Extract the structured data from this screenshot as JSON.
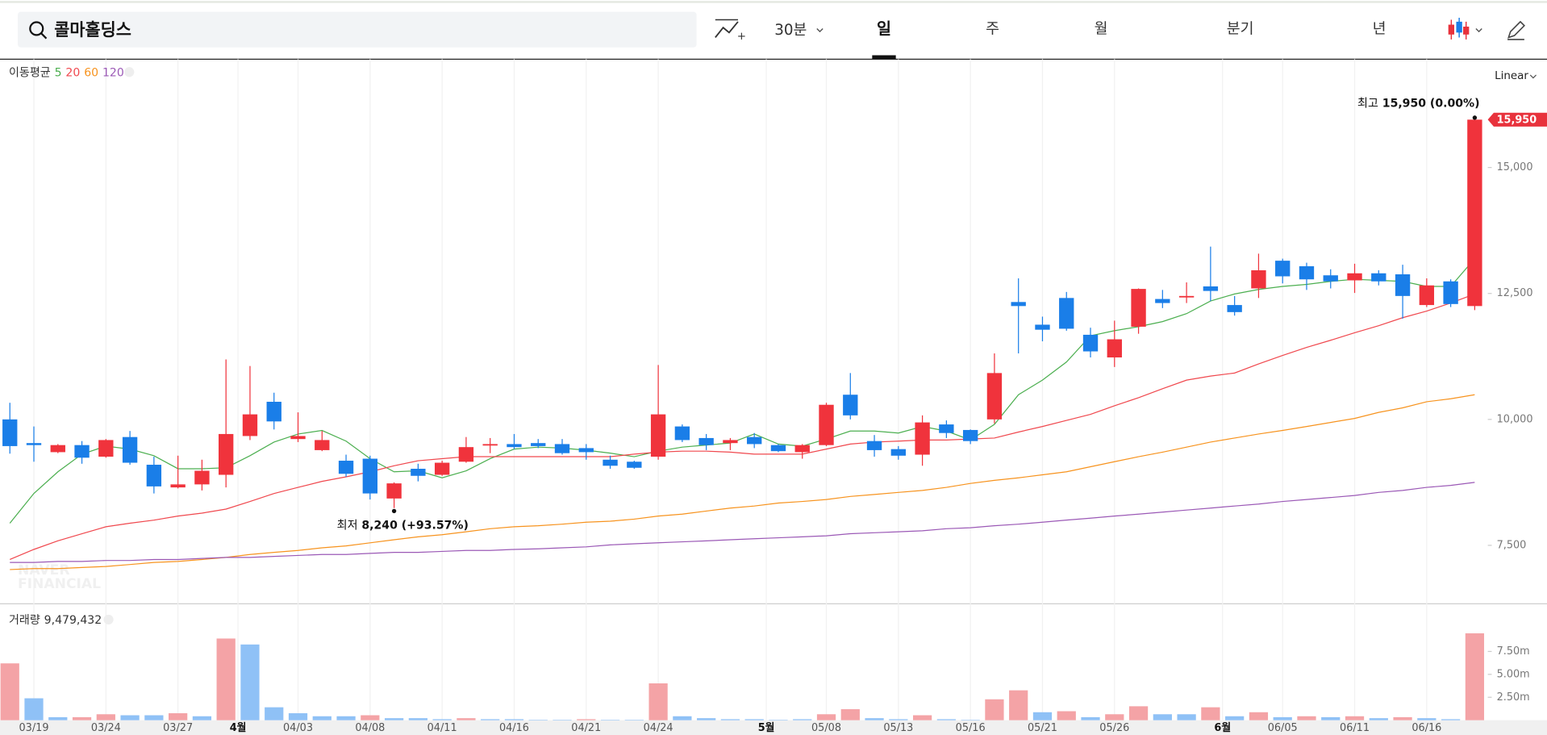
{
  "toolbar": {
    "search": "콜마홀딩스",
    "interval": "30분",
    "periods": [
      "일",
      "주",
      "월",
      "분기",
      "년"
    ]
  },
  "chart_data": [
    {
      "type": "candlestick",
      "legend_title": "이동평균",
      "scale_label": "Linear",
      "categories": [
        null,
        "03/19",
        null,
        null,
        "03/24",
        null,
        null,
        "03/27",
        null,
        null,
        null,
        null,
        "04/03",
        null,
        null,
        "04/08",
        null,
        null,
        "04/11",
        null,
        null,
        "04/16",
        null,
        null,
        "04/21",
        null,
        null,
        "04/24",
        null,
        null,
        null,
        null,
        null,
        null,
        "05/08",
        null,
        null,
        "05/13",
        null,
        null,
        "05/16",
        null,
        null,
        "05/21",
        null,
        null,
        "05/26",
        null,
        null,
        null,
        null,
        null,
        null,
        "06/05",
        null,
        null,
        "06/11",
        null,
        null,
        "06/16",
        null,
        null
      ],
      "xticks": [
        {
          "value": 9.5,
          "label": "4월"
        },
        {
          "value": 31.5,
          "label": "5월"
        },
        {
          "value": 50.5,
          "label": "6월"
        }
      ],
      "open": [
        10000,
        9530,
        9350,
        9490,
        9260,
        9650,
        9100,
        8650,
        8710,
        8900,
        9670,
        10350,
        9610,
        9390,
        9180,
        9220,
        8430,
        9020,
        8900,
        9160,
        9490,
        9510,
        9530,
        9510,
        9430,
        9200,
        9160,
        9260,
        9860,
        9630,
        9530,
        9650,
        9490,
        9350,
        9490,
        10490,
        9570,
        9410,
        9300,
        9900,
        9790,
        10000,
        12330,
        11880,
        12410,
        11680,
        11230,
        11840,
        12390,
        12430,
        12640,
        12270,
        12600,
        13150,
        13040,
        12860,
        12760,
        12900,
        12880,
        12270,
        12740,
        12250
      ],
      "high": [
        10330,
        9860,
        9510,
        9570,
        9610,
        9770,
        9260,
        9280,
        9200,
        11190,
        11060,
        10530,
        10140,
        9770,
        9300,
        9280,
        8750,
        9120,
        9180,
        9650,
        9630,
        9710,
        9610,
        9610,
        9510,
        9280,
        9180,
        11080,
        9900,
        9710,
        9630,
        9730,
        9510,
        9510,
        10330,
        10920,
        9690,
        9470,
        10080,
        9980,
        9800,
        11310,
        12800,
        12040,
        12530,
        11820,
        11960,
        12600,
        12570,
        12720,
        13430,
        12450,
        13290,
        13190,
        13110,
        12980,
        13090,
        12960,
        13070,
        12800,
        12780,
        15950
      ],
      "low": [
        9320,
        9160,
        9330,
        9120,
        9240,
        9100,
        8530,
        8630,
        8590,
        8650,
        9590,
        9800,
        9550,
        9370,
        8860,
        8410,
        8240,
        8770,
        8880,
        9140,
        9330,
        9410,
        9430,
        9300,
        9200,
        9020,
        9020,
        9200,
        9550,
        9390,
        9390,
        9430,
        9350,
        9220,
        9470,
        10000,
        9260,
        9200,
        9080,
        9630,
        9510,
        9920,
        11310,
        11550,
        11760,
        11230,
        11040,
        11700,
        12210,
        12310,
        12350,
        12060,
        12410,
        12700,
        12570,
        12600,
        12510,
        12660,
        12000,
        12230,
        12230,
        12170
      ],
      "close": [
        9470,
        9490,
        9490,
        9240,
        9590,
        9140,
        8670,
        8710,
        8980,
        9710,
        10100,
        9960,
        9670,
        9590,
        8920,
        8530,
        8730,
        8880,
        9140,
        9450,
        9510,
        9450,
        9470,
        9330,
        9350,
        9080,
        9040,
        10100,
        9590,
        9490,
        9590,
        9510,
        9370,
        9490,
        10290,
        10080,
        9390,
        9280,
        9940,
        9730,
        9570,
        10920,
        12250,
        11780,
        11800,
        11350,
        11590,
        12590,
        12310,
        12450,
        12550,
        12130,
        12960,
        12840,
        12780,
        12740,
        12900,
        12740,
        12450,
        12660,
        12290,
        15950
      ],
      "up_color": "#f0333c",
      "down_color": "#1a7ee8",
      "series": [
        {
          "name": "5",
          "color": "#4caf50",
          "values": [
            7940,
            8530,
            8960,
            9310,
            9470,
            9410,
            9280,
            9020,
            9020,
            9040,
            9280,
            9550,
            9710,
            9780,
            9570,
            9220,
            8960,
            8980,
            8840,
            8980,
            9220,
            9410,
            9450,
            9430,
            9390,
            9330,
            9260,
            9370,
            9450,
            9490,
            9530,
            9710,
            9510,
            9470,
            9610,
            9770,
            9770,
            9730,
            9860,
            9770,
            9590,
            9900,
            10490,
            10780,
            11140,
            11660,
            11760,
            11840,
            11940,
            12100,
            12350,
            12490,
            12580,
            12640,
            12680,
            12740,
            12780,
            12760,
            12740,
            12640,
            12640,
            13190
          ]
        },
        {
          "name": "20",
          "color": "#f0484e",
          "values": [
            7220,
            7420,
            7590,
            7730,
            7870,
            7940,
            8000,
            8080,
            8140,
            8220,
            8370,
            8530,
            8650,
            8770,
            8860,
            8960,
            9080,
            9180,
            9220,
            9260,
            9260,
            9260,
            9260,
            9260,
            9260,
            9260,
            9310,
            9350,
            9370,
            9370,
            9350,
            9310,
            9310,
            9310,
            9410,
            9510,
            9550,
            9570,
            9590,
            9590,
            9610,
            9630,
            9750,
            9860,
            9980,
            10100,
            10270,
            10430,
            10610,
            10780,
            10860,
            10920,
            11100,
            11270,
            11430,
            11570,
            11720,
            11860,
            12020,
            12150,
            12310,
            12490
          ]
        },
        {
          "name": "60",
          "color": "#f7931e",
          "values": [
            7020,
            7040,
            7040,
            7060,
            7080,
            7120,
            7160,
            7180,
            7220,
            7260,
            7320,
            7360,
            7400,
            7450,
            7490,
            7550,
            7610,
            7670,
            7710,
            7770,
            7830,
            7870,
            7890,
            7920,
            7960,
            7980,
            8020,
            8080,
            8120,
            8180,
            8240,
            8280,
            8340,
            8370,
            8410,
            8470,
            8510,
            8550,
            8590,
            8650,
            8730,
            8790,
            8840,
            8900,
            8960,
            9060,
            9160,
            9260,
            9350,
            9450,
            9550,
            9630,
            9710,
            9780,
            9860,
            9940,
            10020,
            10140,
            10230,
            10350,
            10410,
            10490
          ]
        },
        {
          "name": "120",
          "color": "#9b59b6",
          "values": [
            7160,
            7160,
            7180,
            7180,
            7200,
            7200,
            7220,
            7220,
            7240,
            7260,
            7260,
            7280,
            7300,
            7320,
            7320,
            7340,
            7360,
            7360,
            7380,
            7400,
            7400,
            7420,
            7430,
            7450,
            7470,
            7510,
            7530,
            7550,
            7570,
            7590,
            7610,
            7630,
            7650,
            7670,
            7690,
            7730,
            7750,
            7770,
            7790,
            7830,
            7850,
            7890,
            7920,
            7960,
            8000,
            8040,
            8080,
            8120,
            8160,
            8200,
            8240,
            8280,
            8320,
            8370,
            8410,
            8450,
            8490,
            8550,
            8590,
            8650,
            8690,
            8750
          ]
        }
      ],
      "ylim": [
        6340,
        17150
      ],
      "yticks": [
        {
          "value": 7500,
          "label": "7,500"
        },
        {
          "value": 10000,
          "label": "10,000"
        },
        {
          "value": 12500,
          "label": "12,500"
        },
        {
          "value": 15000,
          "label": "15,000"
        }
      ],
      "grid": false,
      "xgrid": true,
      "high_note": {
        "label": "최고",
        "value": 15950,
        "value_label": "15,950",
        "change": "(0.00%)"
      },
      "low_note": {
        "label": "최저",
        "value": 8240,
        "value_label": "8,240",
        "change": "(+93.57%)"
      },
      "last_price": {
        "value": 15950,
        "label": "15,950"
      },
      "watermark": [
        "NAVER",
        "FINANCIAL"
      ]
    },
    {
      "type": "bar",
      "title": "거래량",
      "legend_value_label": "9,479,432",
      "values": [
        6200000,
        2390000,
        330000,
        330000,
        650000,
        540000,
        540000,
        760000,
        430000,
        8910000,
        8260000,
        1410000,
        760000,
        430000,
        430000,
        540000,
        220000,
        220000,
        110000,
        220000,
        110000,
        110000,
        50000,
        50000,
        110000,
        50000,
        50000,
        4020000,
        430000,
        220000,
        110000,
        110000,
        50000,
        110000,
        650000,
        1200000,
        220000,
        110000,
        540000,
        110000,
        50000,
        2280000,
        3260000,
        870000,
        980000,
        330000,
        650000,
        1520000,
        650000,
        650000,
        1410000,
        430000,
        870000,
        330000,
        430000,
        330000,
        430000,
        220000,
        330000,
        220000,
        110000,
        9479432
      ],
      "colors": [
        "#f4a3a6",
        "#8fc1f6",
        "#8fc1f6",
        "#f4a3a6",
        "#f4a3a6",
        "#8fc1f6",
        "#8fc1f6",
        "#f4a3a6",
        "#8fc1f6",
        "#f4a3a6",
        "#8fc1f6",
        "#8fc1f6",
        "#8fc1f6",
        "#8fc1f6",
        "#8fc1f6",
        "#f4a3a6",
        "#8fc1f6",
        "#8fc1f6",
        "#8fc1f6",
        "#f4a3a6",
        "#8fc1f6",
        "#8fc1f6",
        "#8fc1f6",
        "#8fc1f6",
        "#f4a3a6",
        "#8fc1f6",
        "#8fc1f6",
        "#f4a3a6",
        "#8fc1f6",
        "#8fc1f6",
        "#8fc1f6",
        "#8fc1f6",
        "#8fc1f6",
        "#8fc1f6",
        "#f4a3a6",
        "#f4a3a6",
        "#8fc1f6",
        "#8fc1f6",
        "#f4a3a6",
        "#8fc1f6",
        "#8fc1f6",
        "#f4a3a6",
        "#f4a3a6",
        "#8fc1f6",
        "#f4a3a6",
        "#8fc1f6",
        "#f4a3a6",
        "#f4a3a6",
        "#8fc1f6",
        "#8fc1f6",
        "#f4a3a6",
        "#8fc1f6",
        "#f4a3a6",
        "#8fc1f6",
        "#f4a3a6",
        "#8fc1f6",
        "#f4a3a6",
        "#8fc1f6",
        "#f4a3a6",
        "#8fc1f6",
        "#8fc1f6",
        "#f4a3a6"
      ],
      "ylim": [
        0,
        12700000
      ],
      "yticks": [
        {
          "value": 2500000,
          "label": "2.50m"
        },
        {
          "value": 5000000,
          "label": "5.00m"
        },
        {
          "value": 7500000,
          "label": "7.50m"
        }
      ]
    }
  ]
}
